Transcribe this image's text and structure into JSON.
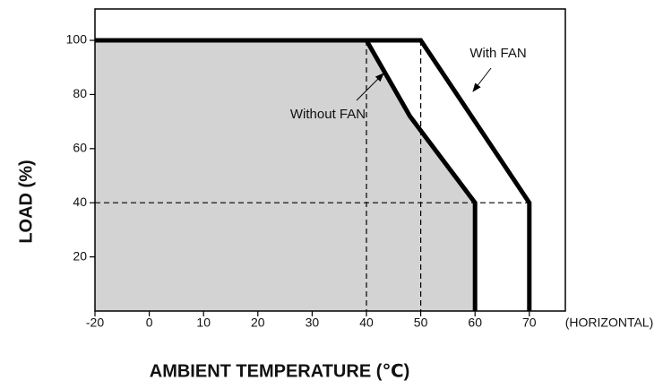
{
  "chart_data": {
    "type": "line",
    "x_label": "AMBIENT TEMPERATURE (℃)",
    "y_label": "LOAD (%)",
    "x_axis_note": "(HORIZONTAL)",
    "xlim": [
      -20,
      76.6
    ],
    "ylim": [
      0,
      111.6
    ],
    "xticks": [
      -20,
      0,
      10,
      20,
      30,
      40,
      50,
      60,
      70
    ],
    "yticks": [
      20,
      40,
      60,
      80,
      100
    ],
    "xscale": "even-ticks",
    "series": [
      {
        "name": "Without FAN",
        "color": "#000000",
        "fill": "#d3d3d3",
        "x": [
          -20,
          40,
          48,
          60,
          60
        ],
        "values": [
          100,
          100,
          72,
          40,
          0
        ]
      },
      {
        "name": "With FAN",
        "color": "#000000",
        "x": [
          -20,
          50,
          70,
          70
        ],
        "values": [
          100,
          100,
          40,
          0
        ]
      }
    ],
    "reference_lines": {
      "x": [
        40,
        50
      ],
      "y": [
        40
      ]
    }
  }
}
